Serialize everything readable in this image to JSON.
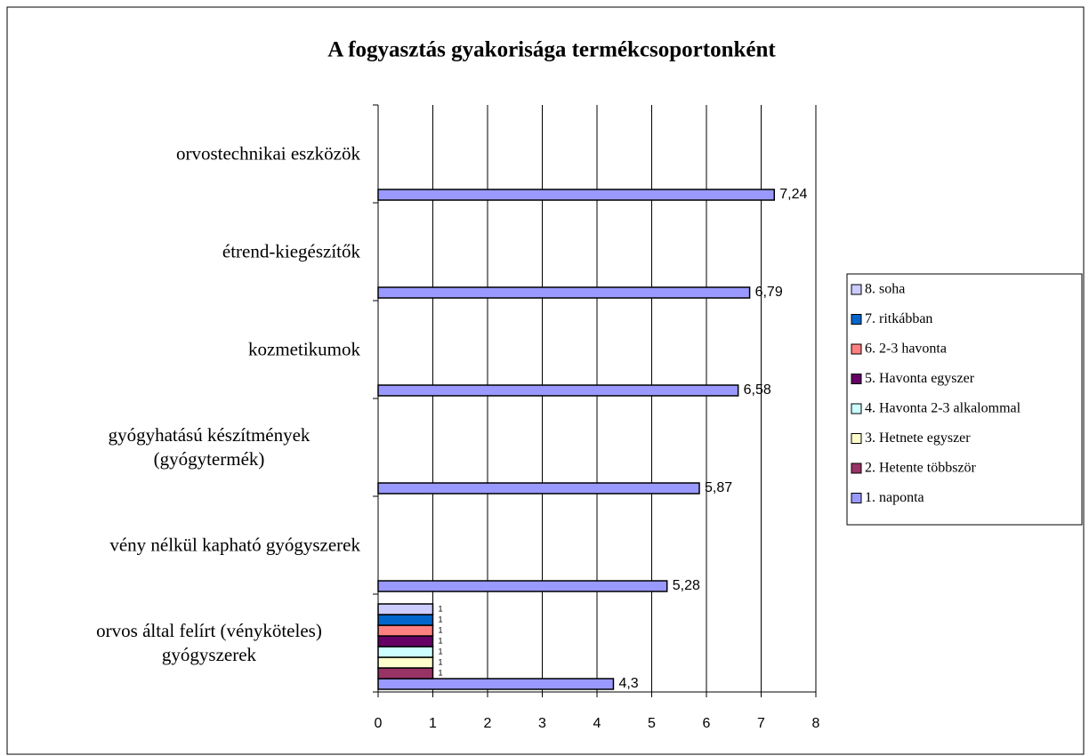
{
  "chart_data": {
    "type": "bar",
    "orientation": "horizontal",
    "title": "A fogyasztás gyakorisága termékcsoportonként",
    "categories": [
      "orvos által felírt (vényköteles) gyógyszerek",
      "vény nélkül kapható gyógyszerek",
      "gyógyhatású készítmények (gyógytermék)",
      "kozmetikumok",
      "étrend-kiegészítők",
      "orvostechnikai eszközök"
    ],
    "series": [
      {
        "name": "1. naponta",
        "color": "#9999ff",
        "values": [
          4.3,
          5.28,
          5.87,
          6.58,
          6.79,
          7.24
        ],
        "value_labels": [
          "4,3",
          "5,28",
          "5,87",
          "6,58",
          "6,79",
          "7,24"
        ]
      },
      {
        "name": "2. Hetente többször",
        "color": "#993366",
        "values": [
          1,
          null,
          null,
          null,
          null,
          null
        ]
      },
      {
        "name": "3. Hetnete egyszer",
        "color": "#ffffcc",
        "values": [
          1,
          null,
          null,
          null,
          null,
          null
        ]
      },
      {
        "name": "4. Havonta 2-3 alkalommal",
        "color": "#ccffff",
        "values": [
          1,
          null,
          null,
          null,
          null,
          null
        ]
      },
      {
        "name": "5. Havonta egyszer",
        "color": "#660066",
        "values": [
          1,
          null,
          null,
          null,
          null,
          null
        ]
      },
      {
        "name": "6. 2-3 havonta",
        "color": "#ff8080",
        "values": [
          1,
          null,
          null,
          null,
          null,
          null
        ]
      },
      {
        "name": "7. ritkábban",
        "color": "#0066cc",
        "values": [
          1,
          null,
          null,
          null,
          null,
          null
        ]
      },
      {
        "name": "8. soha",
        "color": "#ccccff",
        "values": [
          1,
          null,
          null,
          null,
          null,
          null
        ]
      }
    ],
    "xlim": [
      0,
      8
    ],
    "xticks": [
      0,
      1,
      2,
      3,
      4,
      5,
      6,
      7,
      8
    ],
    "grid": true,
    "legend": "right"
  }
}
